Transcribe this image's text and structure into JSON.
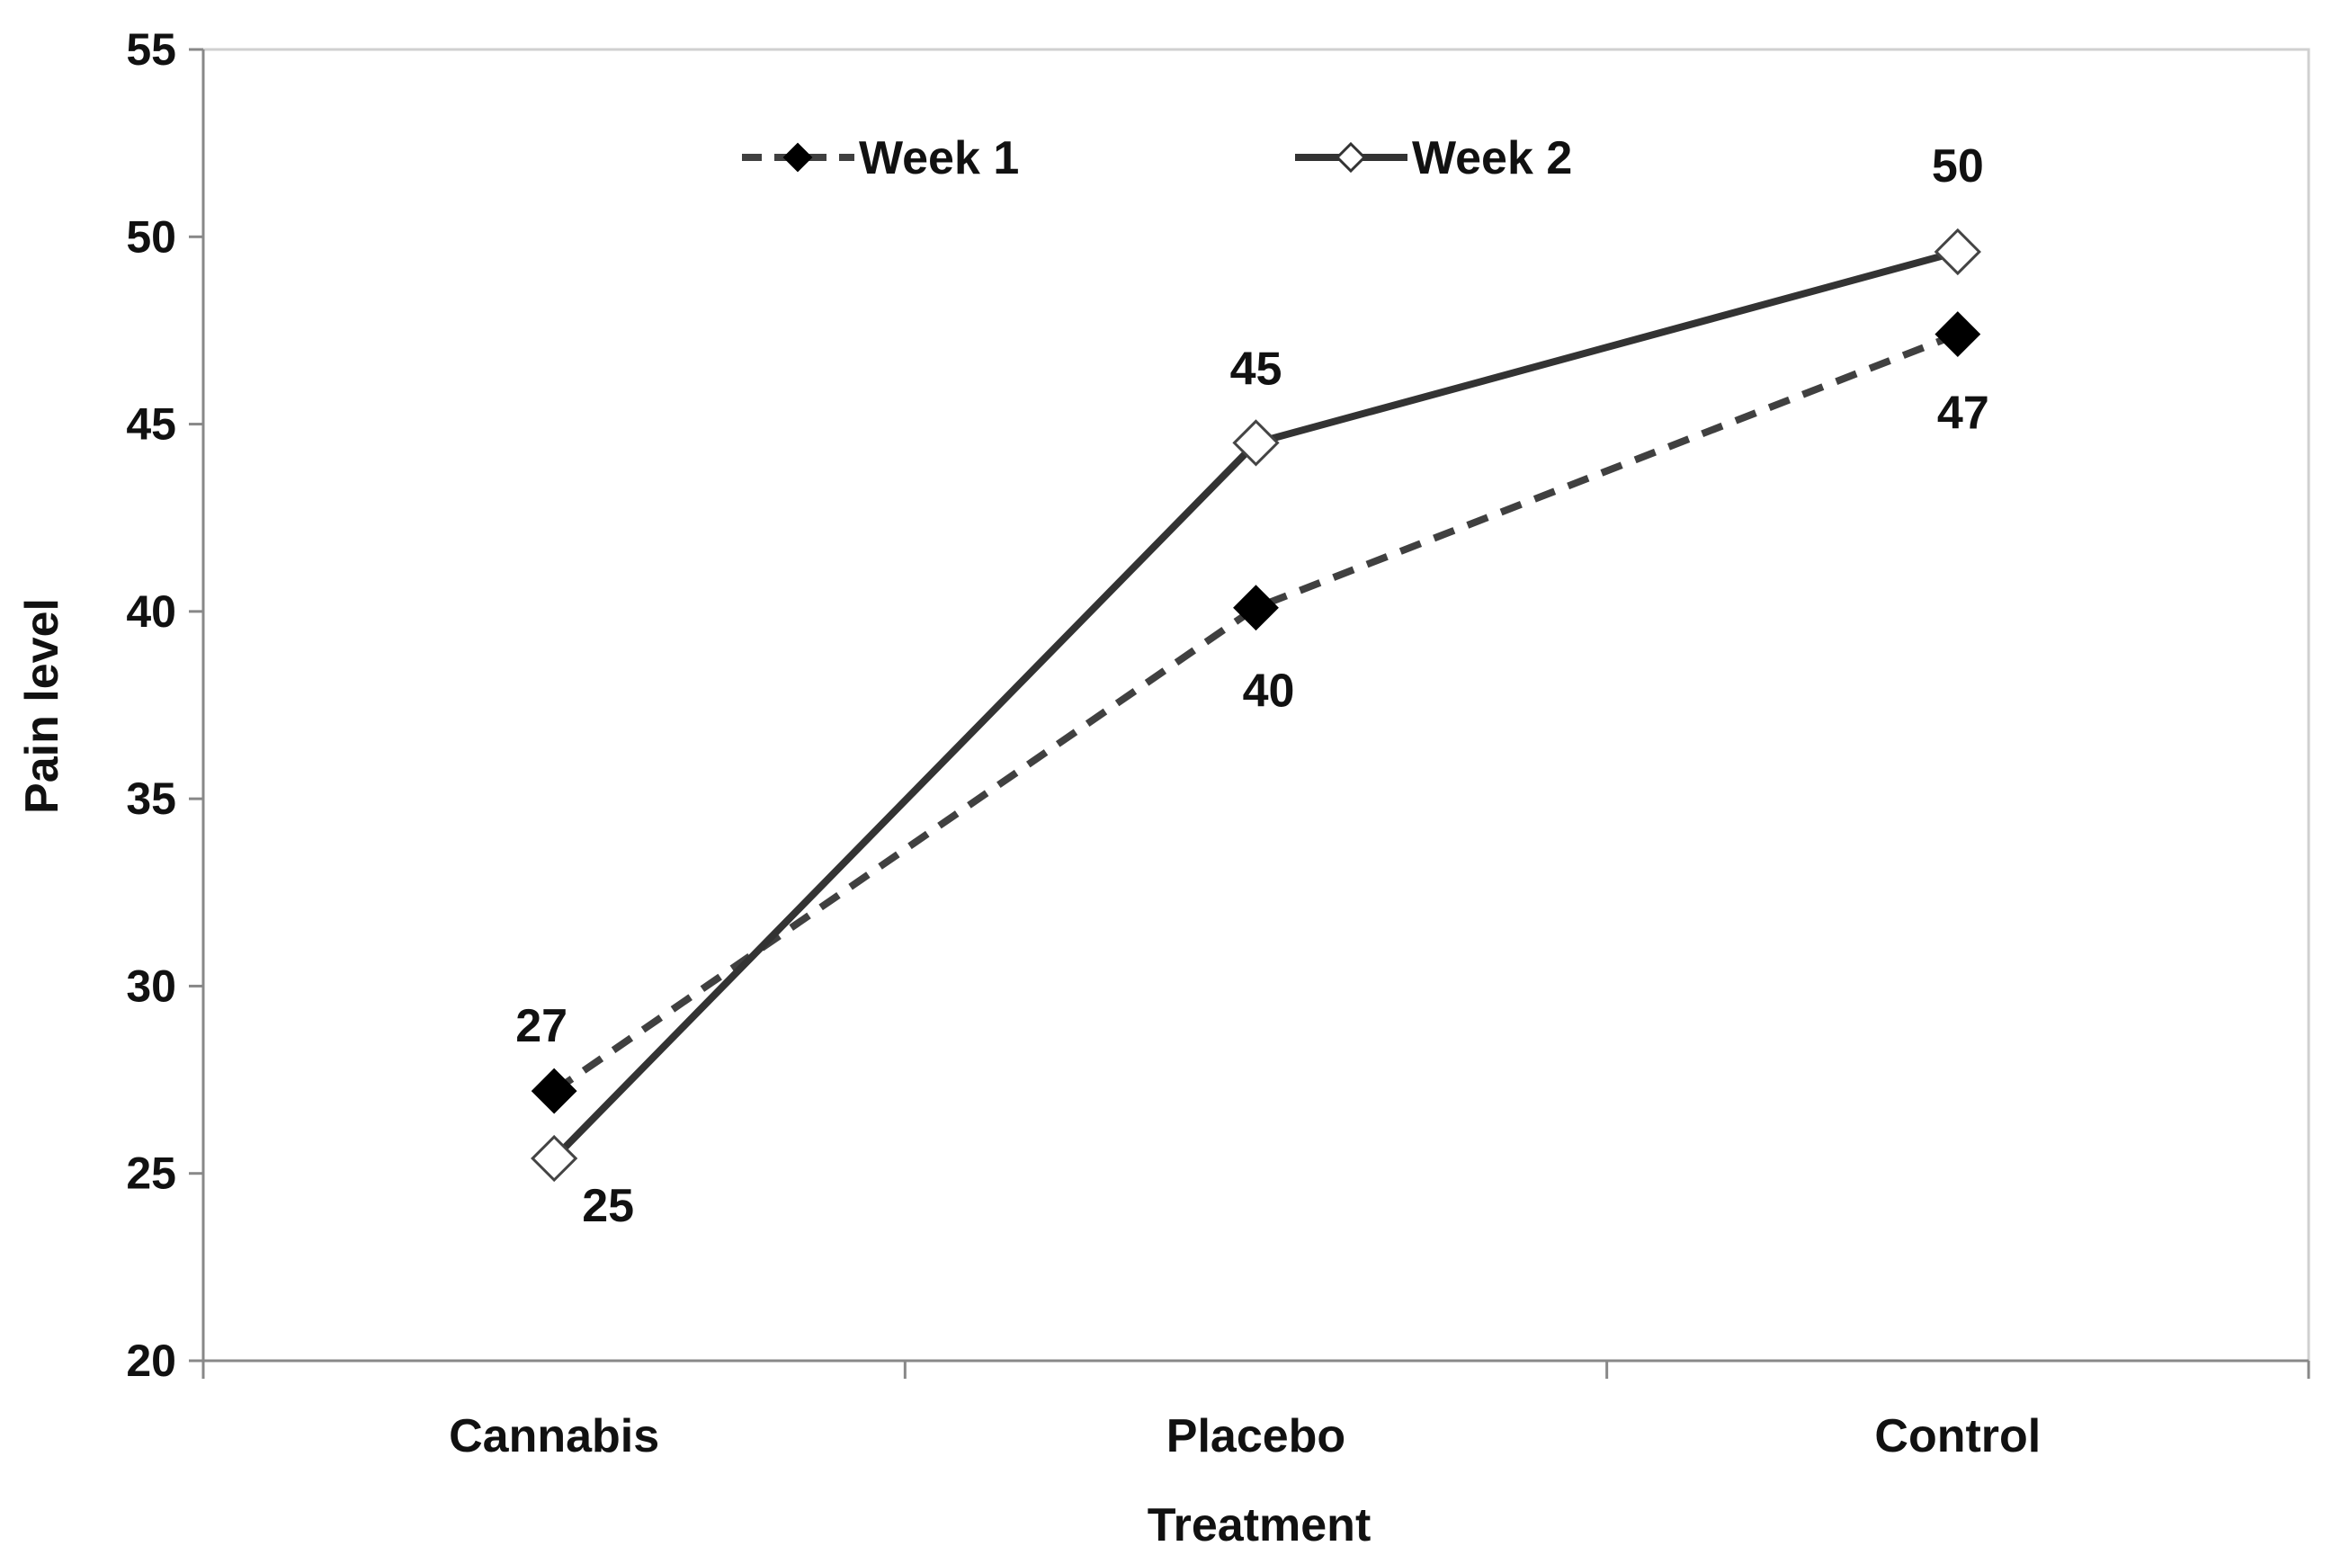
{
  "chart_data": {
    "type": "line",
    "title": "",
    "xlabel": "Treatment",
    "ylabel": "Pain level",
    "categories": [
      "Cannabis",
      "Placebo",
      "Control"
    ],
    "ylim": [
      20,
      55
    ],
    "yticks": [
      20,
      25,
      30,
      35,
      40,
      45,
      50,
      55
    ],
    "grid": false,
    "legend_position": "top-center",
    "series": [
      {
        "name": "Week 1",
        "values": [
          27.2,
          40.1,
          47.4
        ],
        "labels": [
          "27",
          "40",
          "47"
        ],
        "line_style": "dashed",
        "marker": "filled-diamond",
        "color": "#404040"
      },
      {
        "name": "Week 2",
        "values": [
          25.4,
          44.5,
          49.6
        ],
        "labels": [
          "25",
          "45",
          "50"
        ],
        "line_style": "solid",
        "marker": "open-diamond",
        "color": "#333333"
      }
    ]
  }
}
